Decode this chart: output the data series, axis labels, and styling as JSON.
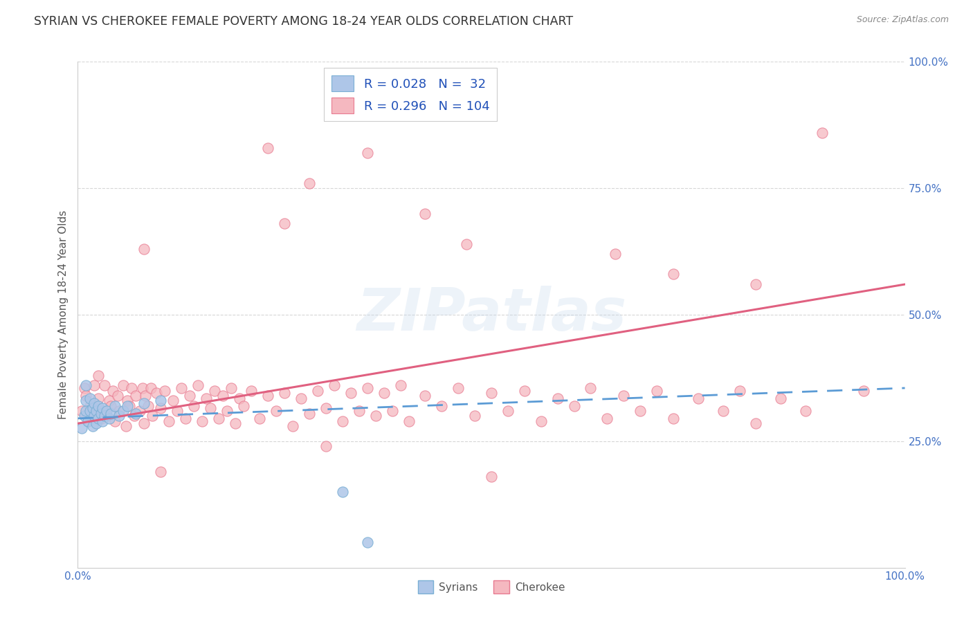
{
  "title": "SYRIAN VS CHEROKEE FEMALE POVERTY AMONG 18-24 YEAR OLDS CORRELATION CHART",
  "source": "Source: ZipAtlas.com",
  "ylabel": "Female Poverty Among 18-24 Year Olds",
  "xlim": [
    0.0,
    1.0
  ],
  "ylim": [
    0.0,
    1.0
  ],
  "background_color": "#ffffff",
  "grid_color": "#bbbbbb",
  "watermark_text": "ZIPatlas",
  "syrian_R": 0.028,
  "syrian_N": 32,
  "cherokee_R": 0.296,
  "cherokee_N": 104,
  "syrian_fill_color": "#aec6e8",
  "cherokee_fill_color": "#f5b8c0",
  "syrian_edge_color": "#7aafd4",
  "cherokee_edge_color": "#e87a90",
  "syrian_line_color": "#5b9bd5",
  "cherokee_line_color": "#e06080",
  "syrians_x": [
    0.005,
    0.008,
    0.01,
    0.01,
    0.01,
    0.012,
    0.015,
    0.015,
    0.018,
    0.018,
    0.02,
    0.02,
    0.022,
    0.022,
    0.025,
    0.025,
    0.028,
    0.03,
    0.03,
    0.032,
    0.035,
    0.038,
    0.04,
    0.045,
    0.05,
    0.055,
    0.06,
    0.07,
    0.08,
    0.1,
    0.32,
    0.35
  ],
  "syrians_y": [
    0.275,
    0.3,
    0.31,
    0.33,
    0.36,
    0.29,
    0.31,
    0.335,
    0.28,
    0.315,
    0.3,
    0.325,
    0.285,
    0.31,
    0.295,
    0.32,
    0.305,
    0.29,
    0.315,
    0.3,
    0.31,
    0.295,
    0.305,
    0.32,
    0.3,
    0.31,
    0.32,
    0.305,
    0.325,
    0.33,
    0.15,
    0.05
  ],
  "cherokee_x": [
    0.005,
    0.008,
    0.01,
    0.012,
    0.015,
    0.018,
    0.02,
    0.02,
    0.022,
    0.025,
    0.025,
    0.028,
    0.03,
    0.032,
    0.035,
    0.038,
    0.04,
    0.042,
    0.045,
    0.048,
    0.05,
    0.055,
    0.058,
    0.06,
    0.062,
    0.065,
    0.068,
    0.07,
    0.075,
    0.078,
    0.08,
    0.082,
    0.085,
    0.088,
    0.09,
    0.095,
    0.1,
    0.105,
    0.11,
    0.115,
    0.12,
    0.125,
    0.13,
    0.135,
    0.14,
    0.145,
    0.15,
    0.155,
    0.16,
    0.165,
    0.17,
    0.175,
    0.18,
    0.185,
    0.19,
    0.195,
    0.2,
    0.21,
    0.22,
    0.23,
    0.24,
    0.25,
    0.26,
    0.27,
    0.28,
    0.29,
    0.3,
    0.31,
    0.32,
    0.33,
    0.34,
    0.35,
    0.36,
    0.37,
    0.38,
    0.39,
    0.4,
    0.42,
    0.44,
    0.46,
    0.48,
    0.5,
    0.52,
    0.54,
    0.56,
    0.58,
    0.6,
    0.62,
    0.64,
    0.66,
    0.68,
    0.7,
    0.72,
    0.75,
    0.78,
    0.8,
    0.82,
    0.85,
    0.88,
    0.95,
    0.25,
    0.3,
    0.1,
    0.5
  ],
  "cherokee_y": [
    0.31,
    0.355,
    0.34,
    0.29,
    0.32,
    0.3,
    0.315,
    0.36,
    0.31,
    0.335,
    0.38,
    0.295,
    0.31,
    0.36,
    0.3,
    0.33,
    0.32,
    0.35,
    0.29,
    0.34,
    0.31,
    0.36,
    0.28,
    0.33,
    0.32,
    0.355,
    0.3,
    0.34,
    0.31,
    0.355,
    0.285,
    0.34,
    0.32,
    0.355,
    0.3,
    0.345,
    0.315,
    0.35,
    0.29,
    0.33,
    0.31,
    0.355,
    0.295,
    0.34,
    0.32,
    0.36,
    0.29,
    0.335,
    0.315,
    0.35,
    0.295,
    0.34,
    0.31,
    0.355,
    0.285,
    0.335,
    0.32,
    0.35,
    0.295,
    0.34,
    0.31,
    0.345,
    0.28,
    0.335,
    0.305,
    0.35,
    0.315,
    0.36,
    0.29,
    0.345,
    0.31,
    0.355,
    0.3,
    0.345,
    0.31,
    0.36,
    0.29,
    0.34,
    0.32,
    0.355,
    0.3,
    0.345,
    0.31,
    0.35,
    0.29,
    0.335,
    0.32,
    0.355,
    0.295,
    0.34,
    0.31,
    0.35,
    0.295,
    0.335,
    0.31,
    0.35,
    0.285,
    0.335,
    0.31,
    0.35,
    0.68,
    0.24,
    0.19,
    0.18
  ],
  "cherokee_outliers_x": [
    0.23,
    0.28,
    0.35,
    0.42,
    0.47,
    0.65,
    0.72,
    0.82,
    0.9,
    0.08
  ],
  "cherokee_outliers_y": [
    0.83,
    0.76,
    0.82,
    0.7,
    0.64,
    0.62,
    0.58,
    0.56,
    0.86,
    0.63
  ],
  "syrian_trend_x0": 0.0,
  "syrian_trend_y0": 0.295,
  "syrian_trend_x1": 1.0,
  "syrian_trend_y1": 0.355,
  "cherokee_trend_x0": 0.0,
  "cherokee_trend_y0": 0.285,
  "cherokee_trend_x1": 1.0,
  "cherokee_trend_y1": 0.56
}
